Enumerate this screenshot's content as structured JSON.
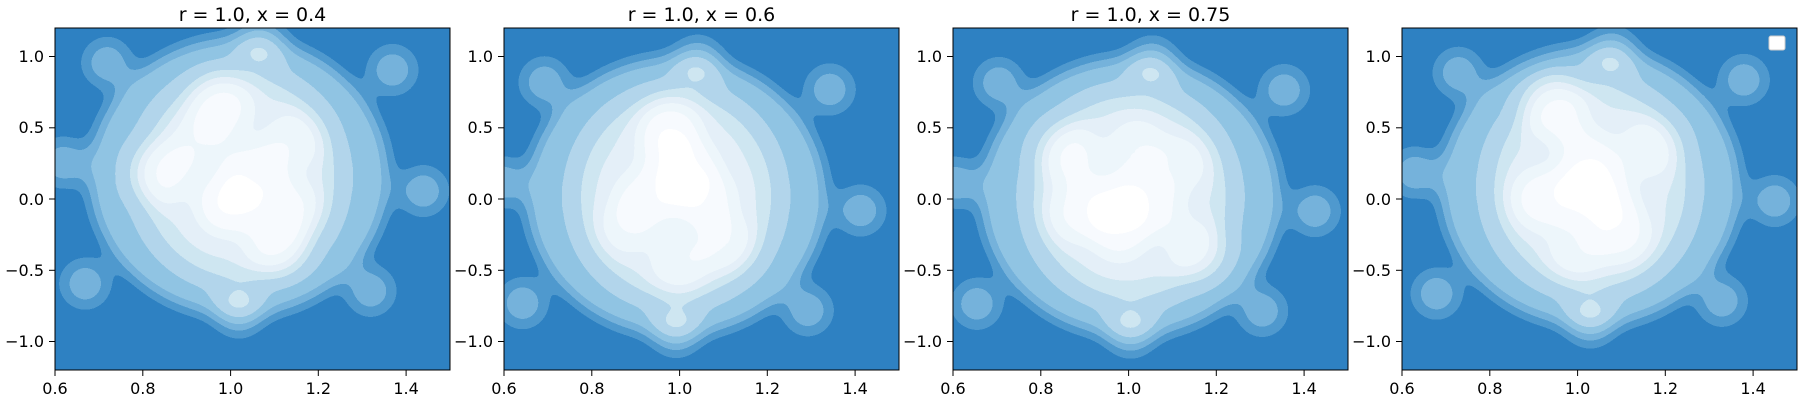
{
  "chart_data": [
    {
      "type": "heatmap",
      "subtype": "kde-filled-contour",
      "title": "r = 1.0, x = 0.4",
      "xlim": [
        0.6,
        1.5
      ],
      "ylim": [
        -1.2,
        1.2
      ],
      "xticks": [
        0.6,
        0.8,
        1.0,
        1.2,
        1.4
      ],
      "xtick_labels": [
        "0.6",
        "0.8",
        "1.0",
        "1.2",
        "1.4"
      ],
      "yticks": [
        -1.0,
        -0.5,
        0.0,
        0.5,
        1.0
      ],
      "ytick_labels": [
        "−1.0",
        "−0.5",
        "0.0",
        "0.5",
        "1.0"
      ],
      "colormap": "Blues",
      "grid": false,
      "density_peaks": [
        {
          "x": 0.98,
          "y": 0.64,
          "level": 0.95
        },
        {
          "x": 0.85,
          "y": 0.18,
          "level": 0.85
        },
        {
          "x": 1.05,
          "y": 0.18,
          "level": 1.0
        },
        {
          "x": 0.99,
          "y": -0.05,
          "level": 0.9
        },
        {
          "x": 1.13,
          "y": -0.05,
          "level": 0.85
        },
        {
          "x": 1.1,
          "y": -0.3,
          "level": 0.9
        },
        {
          "x": 1.14,
          "y": 0.4,
          "level": 0.7
        },
        {
          "x": 0.93,
          "y": 0.4,
          "level": 0.65
        },
        {
          "x": 1.0,
          "y": 0.0,
          "level": 0.75
        }
      ]
    },
    {
      "type": "heatmap",
      "subtype": "kde-filled-contour",
      "title": "r = 1.0, x = 0.6",
      "xlim": [
        0.6,
        1.5
      ],
      "ylim": [
        -1.2,
        1.2
      ],
      "xticks": [
        0.6,
        0.8,
        1.0,
        1.2,
        1.4
      ],
      "xtick_labels": [
        "0.6",
        "0.8",
        "1.0",
        "1.2",
        "1.4"
      ],
      "yticks": [
        -1.0,
        -0.5,
        0.0,
        0.5,
        1.0
      ],
      "ytick_labels": [
        "−1.0",
        "−0.5",
        "0.0",
        "0.5",
        "1.0"
      ],
      "colormap": "Blues",
      "grid": false,
      "density_peaks": [
        {
          "x": 0.98,
          "y": 0.5,
          "level": 0.9
        },
        {
          "x": 1.02,
          "y": 0.22,
          "level": 1.0
        },
        {
          "x": 0.92,
          "y": 0.0,
          "level": 0.95
        },
        {
          "x": 1.06,
          "y": 0.0,
          "level": 0.95
        },
        {
          "x": 0.97,
          "y": 0.35,
          "level": 0.8
        },
        {
          "x": 1.1,
          "y": -0.3,
          "level": 0.75
        },
        {
          "x": 1.0,
          "y": -0.45,
          "level": 0.7
        },
        {
          "x": 0.88,
          "y": -0.2,
          "level": 0.6
        },
        {
          "x": 1.0,
          "y": 0.05,
          "level": 0.75
        }
      ]
    },
    {
      "type": "heatmap",
      "subtype": "kde-filled-contour",
      "title": "r = 1.0, x = 0.75",
      "xlim": [
        0.6,
        1.5
      ],
      "ylim": [
        -1.2,
        1.2
      ],
      "xticks": [
        0.6,
        0.8,
        1.0,
        1.2,
        1.4
      ],
      "xtick_labels": [
        "0.6",
        "0.8",
        "1.0",
        "1.2",
        "1.4"
      ],
      "yticks": [
        -1.0,
        -0.5,
        0.0,
        0.5,
        1.0
      ],
      "ytick_labels": [
        "−1.0",
        "−0.5",
        "0.0",
        "0.5",
        "1.0"
      ],
      "colormap": "Blues",
      "grid": false,
      "density_peaks": [
        {
          "x": 0.96,
          "y": -0.05,
          "level": 1.0
        },
        {
          "x": 0.98,
          "y": -0.22,
          "level": 0.95
        },
        {
          "x": 1.06,
          "y": -0.05,
          "level": 0.85
        },
        {
          "x": 0.87,
          "y": 0.3,
          "level": 0.85
        },
        {
          "x": 0.88,
          "y": -0.1,
          "level": 0.8
        },
        {
          "x": 1.02,
          "y": 0.35,
          "level": 0.75
        },
        {
          "x": 1.15,
          "y": -0.35,
          "level": 0.65
        },
        {
          "x": 1.12,
          "y": 0.25,
          "level": 0.6
        },
        {
          "x": 1.0,
          "y": 0.0,
          "level": 0.7
        }
      ]
    },
    {
      "type": "heatmap",
      "subtype": "kde-filled-contour",
      "title": "",
      "xlim": [
        0.6,
        1.5
      ],
      "ylim": [
        -1.2,
        1.2
      ],
      "xticks": [
        0.6,
        0.8,
        1.0,
        1.2,
        1.4
      ],
      "xtick_labels": [
        "0.6",
        "0.8",
        "1.0",
        "1.2",
        "1.4"
      ],
      "yticks": [
        -1.0,
        -0.5,
        0.0,
        0.5,
        1.0
      ],
      "ytick_labels": [
        "−1.0",
        "−0.5",
        "0.0",
        "0.5",
        "1.0"
      ],
      "colormap": "Blues",
      "grid": false,
      "legend": "top-right",
      "density_peaks": [
        {
          "x": 0.95,
          "y": 0.62,
          "level": 0.95
        },
        {
          "x": 1.04,
          "y": 0.1,
          "level": 1.0
        },
        {
          "x": 0.92,
          "y": 0.0,
          "level": 1.0
        },
        {
          "x": 1.07,
          "y": -0.05,
          "level": 0.9
        },
        {
          "x": 1.02,
          "y": 0.3,
          "level": 0.85
        },
        {
          "x": 1.1,
          "y": -0.25,
          "level": 0.85
        },
        {
          "x": 1.16,
          "y": 0.35,
          "level": 0.7
        },
        {
          "x": 1.0,
          "y": -0.35,
          "level": 0.7
        },
        {
          "x": 1.0,
          "y": 0.05,
          "level": 0.75
        }
      ]
    }
  ]
}
